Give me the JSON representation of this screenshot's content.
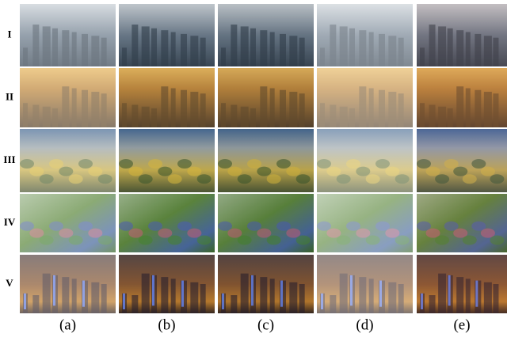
{
  "row_labels": [
    "I",
    "II",
    "III",
    "IV",
    "V"
  ],
  "column_labels": [
    "(a)",
    "(b)",
    "(c)",
    "(d)",
    "(e)"
  ]
}
